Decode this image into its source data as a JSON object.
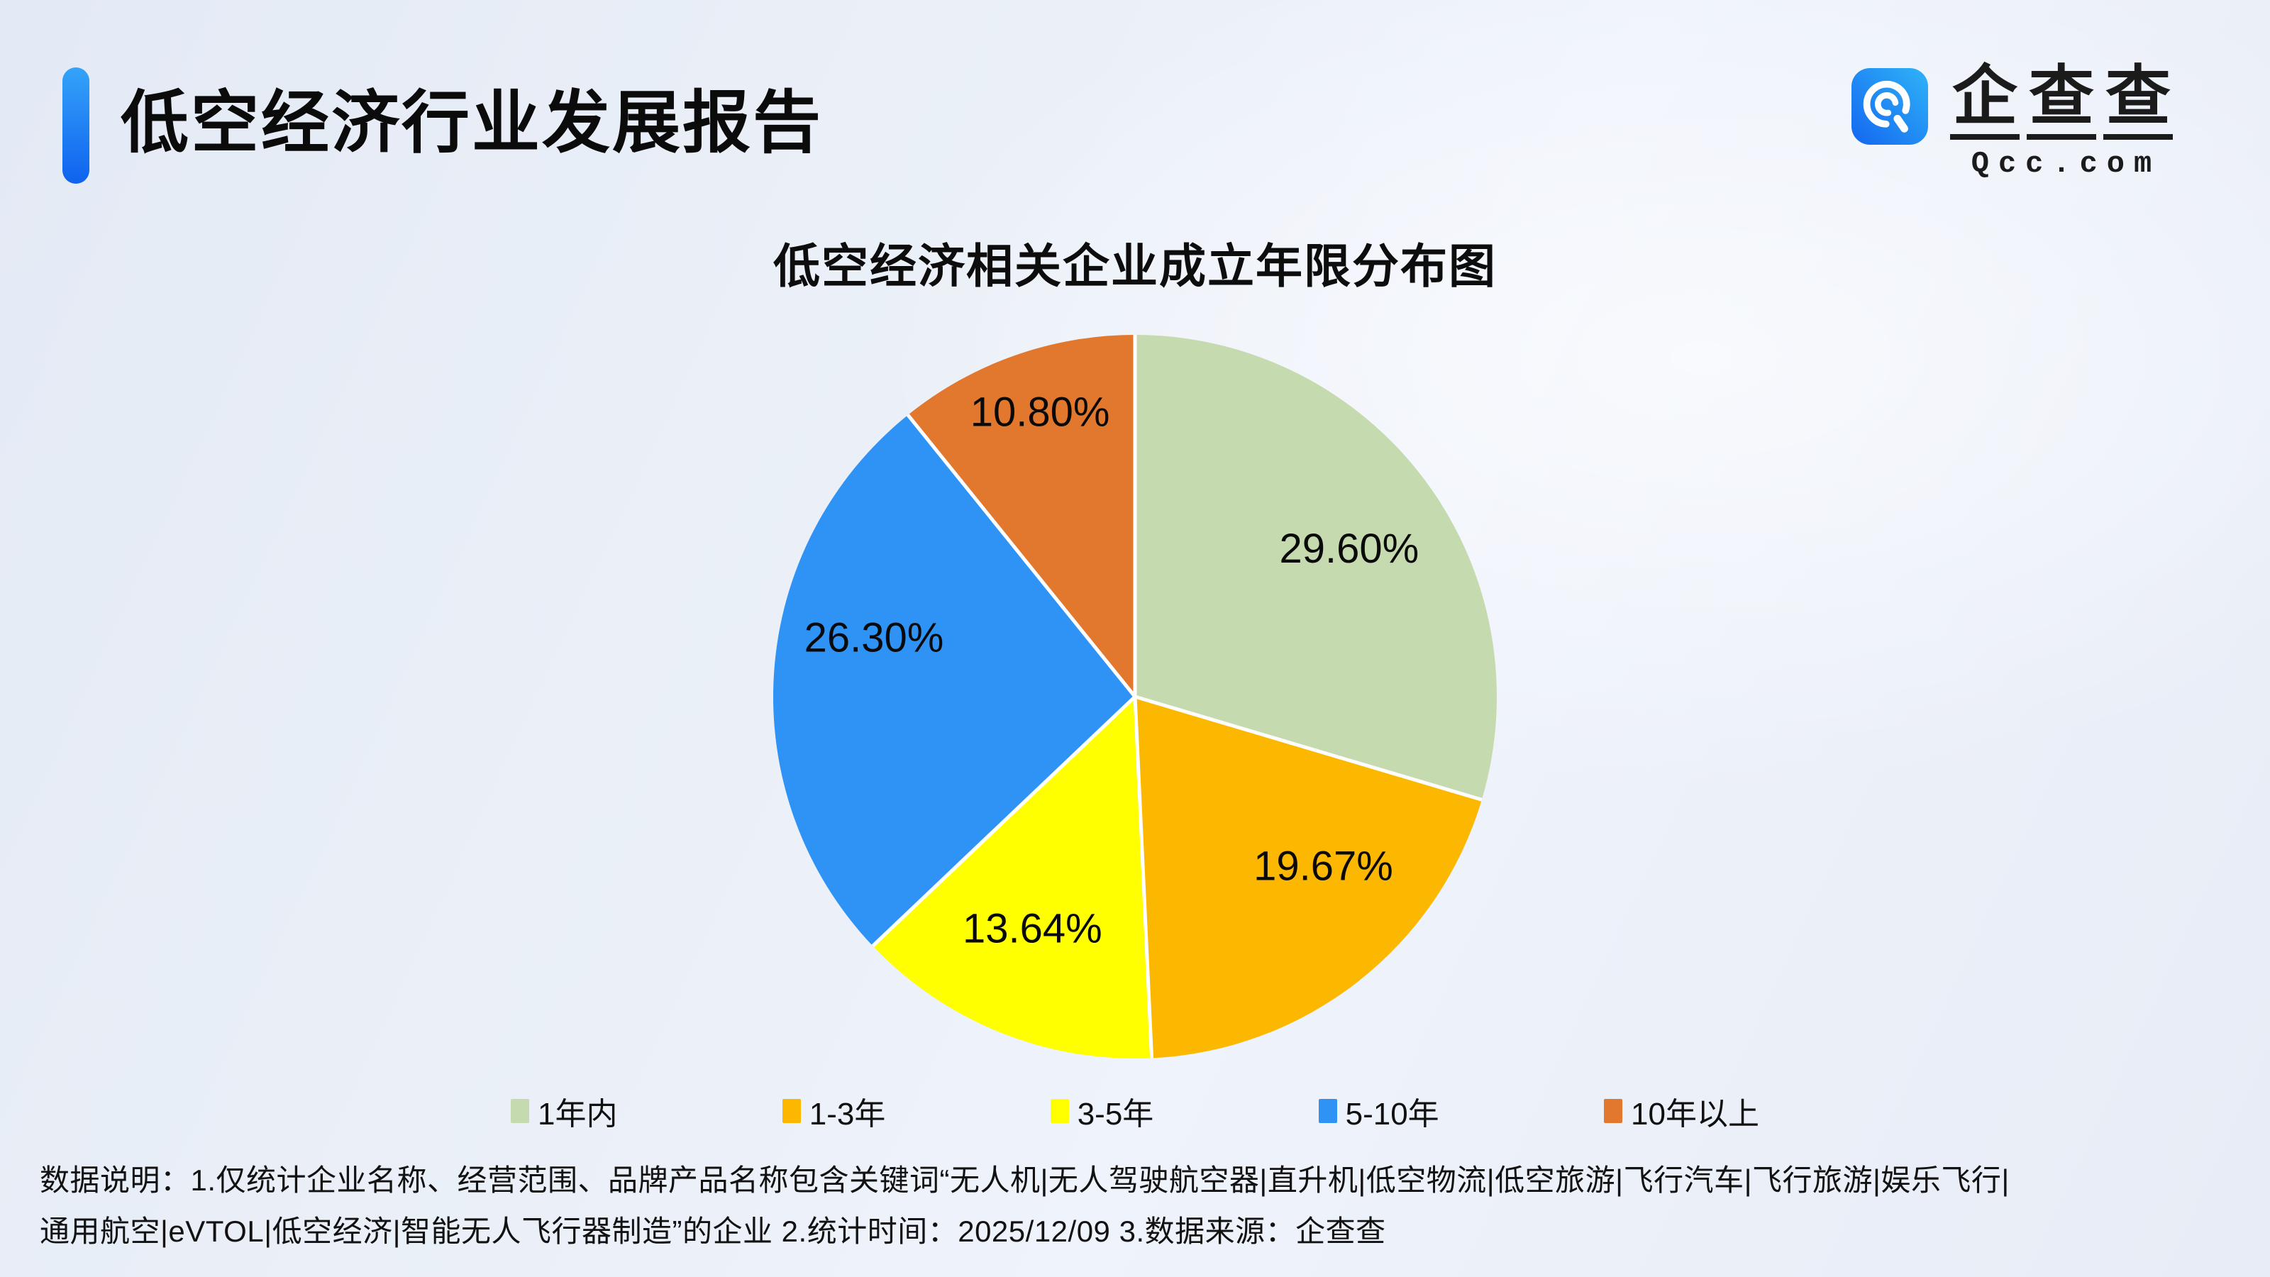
{
  "header": {
    "title": "低空经济行业发展报告",
    "brand": {
      "name": "企查查",
      "domain": "Qcc.com",
      "icon": "qcc-magnifier-icon",
      "icon_color_start": "#1467F0",
      "icon_color_end": "#2FB3F8"
    }
  },
  "chart_data": {
    "type": "pie",
    "title": "低空经济相关企业成立年限分布图",
    "unit": "%",
    "direction": "clockwise",
    "start_angle_deg": 0,
    "legend_position": "bottom",
    "slices": [
      {
        "label": "1年内",
        "value": 29.6,
        "display": "29.60%",
        "color": "#C5DAAE"
      },
      {
        "label": "1-3年",
        "value": 19.67,
        "display": "19.67%",
        "color": "#FCB800"
      },
      {
        "label": "3-5年",
        "value": 13.64,
        "display": "13.64%",
        "color": "#FFFF00"
      },
      {
        "label": "5-10年",
        "value": 26.3,
        "display": "26.30%",
        "color": "#2E93F5"
      },
      {
        "label": "10年以上",
        "value": 10.8,
        "display": "10.80%",
        "color": "#E2772E"
      }
    ]
  },
  "footer": {
    "line1": "数据说明：1.仅统计企业名称、经营范围、品牌产品名称包含关键词“无人机|无人驾驶航空器|直升机|低空物流|低空旅游|飞行汽车|飞行旅游|娱乐飞行|",
    "line2": "通用航空|eVTOL|低空经济|智能无人飞行器制造”的企业   2.统计时间：2025/12/09   3.数据来源：企查查"
  }
}
